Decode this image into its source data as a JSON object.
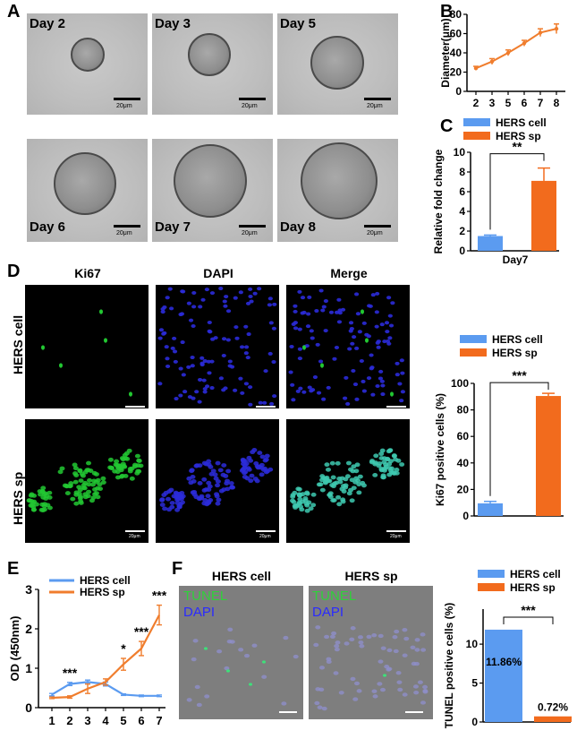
{
  "panels": {
    "A": "A",
    "B": "B",
    "C": "C",
    "D": "D",
    "E": "E",
    "F": "F"
  },
  "panel_a": {
    "days": [
      "Day 2",
      "Day 3",
      "Day 5",
      "Day 6",
      "Day 7",
      "Day 8"
    ],
    "scale_label": "20μm"
  },
  "panel_d": {
    "columns": [
      "Ki67",
      "DAPI",
      "Merge"
    ],
    "rows": [
      "HERS cell",
      "HERS sp"
    ],
    "scale_top": "100μm",
    "scale_bottom": "20μm"
  },
  "panel_f": {
    "columns": [
      "HERS cell",
      "HERS sp"
    ],
    "stain1": "TUNEL",
    "stain2": "DAPI"
  },
  "colors": {
    "hers_cell": "#5b9bf0",
    "hers_sp": "#f26b1d",
    "line": "#f07d2d"
  },
  "chart_data": [
    {
      "id": "B",
      "type": "line",
      "x": [
        2,
        3,
        5,
        6,
        7,
        8
      ],
      "series": [
        {
          "values": [
            24,
            31,
            40,
            50,
            61,
            65
          ],
          "error": [
            2,
            3,
            3,
            3,
            4,
            5
          ]
        }
      ],
      "title": "",
      "xlabel": "",
      "ylabel": "Diameter(μm)",
      "xticks": [
        "2",
        "3",
        "5",
        "6",
        "7",
        "8"
      ],
      "yticks": [
        "0",
        "20",
        "40",
        "60",
        "80"
      ],
      "ylim": [
        0,
        80
      ]
    },
    {
      "id": "C",
      "type": "bar",
      "categories": [
        "HERS cell",
        "HERS sp"
      ],
      "values": [
        1.5,
        7.1
      ],
      "error": [
        0.1,
        1.3
      ],
      "xlabel": "Day7",
      "ylabel": "Relative fold change",
      "yticks": [
        "0",
        "2",
        "4",
        "6",
        "8",
        "10"
      ],
      "ylim": [
        0,
        10
      ],
      "significance": "**",
      "legend": [
        "HERS cell",
        "HERS sp"
      ]
    },
    {
      "id": "D",
      "type": "bar",
      "categories": [
        "HERS cell",
        "HERS sp"
      ],
      "values": [
        9.5,
        90.5
      ],
      "error": [
        1.5,
        2.0
      ],
      "ylabel": "Ki67 positive cells (%)",
      "yticks": [
        "0",
        "20",
        "40",
        "60",
        "80",
        "100"
      ],
      "ylim": [
        0,
        100
      ],
      "significance": "***",
      "legend": [
        "HERS cell",
        "HERS sp"
      ]
    },
    {
      "id": "E",
      "type": "line",
      "x": [
        1,
        2,
        3,
        4,
        5,
        6,
        7
      ],
      "series": [
        {
          "name": "HERS cell",
          "values": [
            0.33,
            0.6,
            0.65,
            0.6,
            0.33,
            0.3,
            0.3
          ],
          "error": [
            0.03,
            0.04,
            0.05,
            0.05,
            0.02,
            0.02,
            0.02
          ]
        },
        {
          "name": "HERS sp",
          "values": [
            0.25,
            0.27,
            0.48,
            0.65,
            1.1,
            1.5,
            2.35
          ],
          "error": [
            0.02,
            0.03,
            0.12,
            0.08,
            0.15,
            0.18,
            0.25
          ]
        }
      ],
      "ylabel": "OD (450nm)",
      "xticks": [
        "1",
        "2",
        "3",
        "4",
        "5",
        "6",
        "7"
      ],
      "yticks": [
        "0",
        "1",
        "2",
        "3"
      ],
      "ylim": [
        0,
        3
      ],
      "annotations": [
        "***",
        "*",
        "***",
        "***"
      ]
    },
    {
      "id": "F",
      "type": "bar",
      "categories": [
        "HERS cell",
        "HERS sp"
      ],
      "values": [
        11.86,
        0.72
      ],
      "data_labels": [
        "11.86%",
        "0.72%"
      ],
      "ylabel": "TUNEL positive cells (%)",
      "yticks": [
        "0",
        "5",
        "10"
      ],
      "ylim": [
        0,
        14.5
      ],
      "significance": "***",
      "legend": [
        "HERS cell",
        "HERS sp"
      ]
    }
  ]
}
